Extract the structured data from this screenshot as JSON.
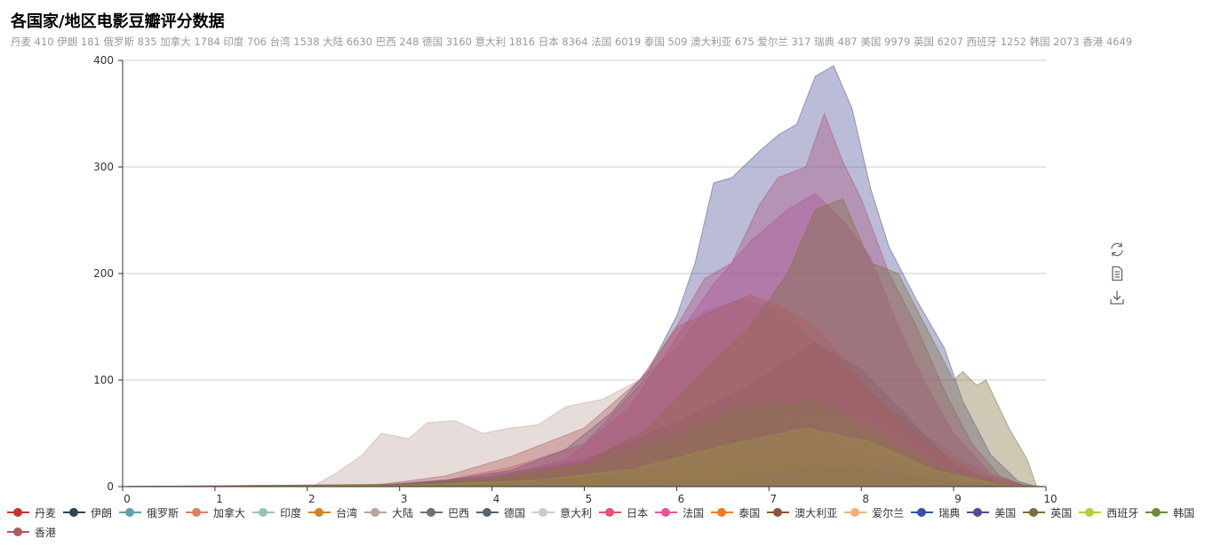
{
  "title": "各国家/地区电影豆瓣评分数据",
  "subtitle": "丹麦 410 伊朗 181 俄罗斯 835 加拿大 1784 印度 706 台湾 1538 大陆 6630 巴西 248 德国 3160 意大利 1816 日本 8364 法国 6019 泰国 509 澳大利亚 675 爱尔兰 317 瑞典 487 美国 9979 英国 6207 西班牙 1252 韩国 2073 香港 4649",
  "toolbox": [
    {
      "name": "restore-icon",
      "label": "还原"
    },
    {
      "name": "data-view-icon",
      "label": "数据视图"
    },
    {
      "name": "save-image-icon",
      "label": "保存为图片"
    }
  ],
  "chart_data": {
    "type": "area",
    "title": "各国家/地区电影豆瓣评分数据",
    "xlabel": "",
    "ylabel": "",
    "xlim": [
      0,
      10
    ],
    "ylim": [
      0,
      400
    ],
    "xticks": [
      "0",
      "1",
      "2",
      "3",
      "4",
      "5",
      "6",
      "7",
      "8",
      "9",
      "10"
    ],
    "yticks": [
      "0",
      "100",
      "200",
      "300",
      "400"
    ],
    "grid": "horizontal",
    "legend_position": "bottom",
    "series": [
      {
        "name": "丹麦",
        "total": 410,
        "color": "#c23531",
        "curve": [
          [
            0,
            0
          ],
          [
            4.5,
            1
          ],
          [
            5.5,
            4
          ],
          [
            6.5,
            10
          ],
          [
            7.5,
            14
          ],
          [
            8,
            12
          ],
          [
            8.8,
            4
          ],
          [
            9.5,
            0
          ],
          [
            10,
            0
          ]
        ]
      },
      {
        "name": "伊朗",
        "total": 181,
        "color": "#2f4554",
        "curve": [
          [
            0,
            0
          ],
          [
            5,
            1
          ],
          [
            6.5,
            4
          ],
          [
            7.5,
            7
          ],
          [
            8.5,
            4
          ],
          [
            9.3,
            0
          ],
          [
            10,
            0
          ]
        ]
      },
      {
        "name": "俄罗斯",
        "total": 835,
        "color": "#61a0a8",
        "curve": [
          [
            0,
            0
          ],
          [
            3,
            1
          ],
          [
            5,
            6
          ],
          [
            6.5,
            16
          ],
          [
            7.5,
            26
          ],
          [
            8.3,
            20
          ],
          [
            9,
            6
          ],
          [
            9.6,
            0
          ],
          [
            10,
            0
          ]
        ]
      },
      {
        "name": "加拿大",
        "total": 1784,
        "color": "#d48265",
        "curve": [
          [
            0,
            0
          ],
          [
            2.8,
            2
          ],
          [
            4,
            8
          ],
          [
            5,
            22
          ],
          [
            6,
            45
          ],
          [
            6.7,
            60
          ],
          [
            7.2,
            55
          ],
          [
            8,
            30
          ],
          [
            9,
            6
          ],
          [
            9.6,
            0
          ],
          [
            10,
            0
          ]
        ]
      },
      {
        "name": "印度",
        "total": 706,
        "color": "#91c7ae",
        "curve": [
          [
            0,
            0
          ],
          [
            2.5,
            1
          ],
          [
            3.5,
            6
          ],
          [
            5,
            12
          ],
          [
            6.5,
            20
          ],
          [
            7.5,
            22
          ],
          [
            8.3,
            14
          ],
          [
            9,
            4
          ],
          [
            9.6,
            0
          ],
          [
            10,
            0
          ]
        ]
      },
      {
        "name": "台湾",
        "total": 1538,
        "color": "#c7891f",
        "curve": [
          [
            0,
            0
          ],
          [
            3,
            1
          ],
          [
            4.5,
            8
          ],
          [
            5.5,
            18
          ],
          [
            6.5,
            45
          ],
          [
            7.3,
            62
          ],
          [
            7.8,
            50
          ],
          [
            8.5,
            20
          ],
          [
            9.2,
            3
          ],
          [
            9.7,
            0
          ],
          [
            10,
            0
          ]
        ]
      },
      {
        "name": "大陆",
        "total": 6630,
        "color": "#bda29a",
        "curve": [
          [
            0,
            0
          ],
          [
            2.05,
            0
          ],
          [
            2.3,
            12
          ],
          [
            2.6,
            30
          ],
          [
            2.8,
            50
          ],
          [
            3.1,
            45
          ],
          [
            3.3,
            60
          ],
          [
            3.6,
            62
          ],
          [
            3.9,
            50
          ],
          [
            4.2,
            55
          ],
          [
            4.5,
            58
          ],
          [
            4.8,
            75
          ],
          [
            5.2,
            82
          ],
          [
            5.6,
            100
          ],
          [
            6,
            130
          ],
          [
            6.3,
            165
          ],
          [
            6.7,
            175
          ],
          [
            7,
            170
          ],
          [
            7.3,
            150
          ],
          [
            7.7,
            120
          ],
          [
            8,
            95
          ],
          [
            8.5,
            60
          ],
          [
            9,
            30
          ],
          [
            9.4,
            10
          ],
          [
            9.8,
            0
          ],
          [
            10,
            0
          ]
        ]
      },
      {
        "name": "巴西",
        "total": 248,
        "color": "#6e7074",
        "curve": [
          [
            0,
            0
          ],
          [
            5,
            1
          ],
          [
            6.5,
            6
          ],
          [
            7.5,
            9
          ],
          [
            8.3,
            6
          ],
          [
            9.2,
            0
          ],
          [
            10,
            0
          ]
        ]
      },
      {
        "name": "德国",
        "total": 3160,
        "color": "#546570",
        "curve": [
          [
            0,
            0
          ],
          [
            3,
            2
          ],
          [
            4,
            10
          ],
          [
            5,
            25
          ],
          [
            6,
            60
          ],
          [
            6.8,
            95
          ],
          [
            7.5,
            135
          ],
          [
            8,
            110
          ],
          [
            8.5,
            65
          ],
          [
            9,
            20
          ],
          [
            9.5,
            3
          ],
          [
            10,
            0
          ]
        ]
      },
      {
        "name": "意大利",
        "total": 1816,
        "color": "#c4ccd3",
        "curve": [
          [
            0,
            0
          ],
          [
            3,
            1
          ],
          [
            4.5,
            6
          ],
          [
            5.5,
            18
          ],
          [
            6.5,
            45
          ],
          [
            7.3,
            68
          ],
          [
            8,
            70
          ],
          [
            8.5,
            45
          ],
          [
            9,
            12
          ],
          [
            9.6,
            0
          ],
          [
            10,
            0
          ]
        ]
      },
      {
        "name": "日本",
        "total": 8364,
        "color": "#e8526e",
        "curve": [
          [
            0,
            0
          ],
          [
            2.8,
            1
          ],
          [
            3.5,
            6
          ],
          [
            4.2,
            18
          ],
          [
            5,
            40
          ],
          [
            5.6,
            95
          ],
          [
            6,
            150
          ],
          [
            6.3,
            195
          ],
          [
            6.6,
            210
          ],
          [
            6.9,
            265
          ],
          [
            7.1,
            290
          ],
          [
            7.4,
            300
          ],
          [
            7.6,
            350
          ],
          [
            7.8,
            305
          ],
          [
            8,
            270
          ],
          [
            8.3,
            200
          ],
          [
            8.6,
            150
          ],
          [
            8.9,
            90
          ],
          [
            9.2,
            40
          ],
          [
            9.5,
            10
          ],
          [
            9.8,
            0
          ],
          [
            10,
            0
          ]
        ]
      },
      {
        "name": "法国",
        "total": 6019,
        "color": "#e85597",
        "curve": [
          [
            0,
            0
          ],
          [
            3,
            1
          ],
          [
            4,
            8
          ],
          [
            4.8,
            25
          ],
          [
            5.5,
            75
          ],
          [
            6,
            140
          ],
          [
            6.4,
            190
          ],
          [
            6.8,
            230
          ],
          [
            7.2,
            260
          ],
          [
            7.5,
            275
          ],
          [
            7.8,
            250
          ],
          [
            8.1,
            215
          ],
          [
            8.4,
            150
          ],
          [
            8.7,
            95
          ],
          [
            9,
            50
          ],
          [
            9.4,
            12
          ],
          [
            9.8,
            0
          ],
          [
            10,
            0
          ]
        ]
      },
      {
        "name": "泰国",
        "total": 509,
        "color": "#ef7b27",
        "curve": [
          [
            0,
            0
          ],
          [
            4,
            1
          ],
          [
            5,
            6
          ],
          [
            6,
            14
          ],
          [
            6.8,
            22
          ],
          [
            7.5,
            18
          ],
          [
            8.3,
            8
          ],
          [
            9,
            1
          ],
          [
            9.5,
            0
          ],
          [
            10,
            0
          ]
        ]
      },
      {
        "name": "澳大利亚",
        "total": 675,
        "color": "#8e5433",
        "curve": [
          [
            0,
            0
          ],
          [
            3.5,
            1
          ],
          [
            5,
            8
          ],
          [
            6,
            18
          ],
          [
            7,
            28
          ],
          [
            7.6,
            26
          ],
          [
            8.3,
            14
          ],
          [
            9,
            3
          ],
          [
            9.5,
            0
          ],
          [
            10,
            0
          ]
        ]
      },
      {
        "name": "爱尔兰",
        "total": 317,
        "color": "#f2b07a",
        "curve": [
          [
            0,
            0
          ],
          [
            5,
            1
          ],
          [
            6.5,
            8
          ],
          [
            7.5,
            13
          ],
          [
            8.3,
            9
          ],
          [
            9,
            2
          ],
          [
            9.5,
            0
          ],
          [
            10,
            0
          ]
        ]
      },
      {
        "name": "瑞典",
        "total": 487,
        "color": "#2f55a4",
        "curve": [
          [
            0,
            0
          ],
          [
            5,
            1
          ],
          [
            6.5,
            8
          ],
          [
            7.5,
            18
          ],
          [
            8.2,
            14
          ],
          [
            9,
            3
          ],
          [
            9.6,
            0
          ],
          [
            10,
            0
          ]
        ]
      },
      {
        "name": "美国",
        "total": 9979,
        "color": "#4d4e96",
        "curve": [
          [
            0,
            0
          ],
          [
            2.8,
            1
          ],
          [
            3.5,
            6
          ],
          [
            4.2,
            15
          ],
          [
            4.8,
            35
          ],
          [
            5.3,
            70
          ],
          [
            5.7,
            110
          ],
          [
            6,
            160
          ],
          [
            6.2,
            210
          ],
          [
            6.4,
            285
          ],
          [
            6.6,
            290
          ],
          [
            6.9,
            315
          ],
          [
            7.1,
            330
          ],
          [
            7.3,
            340
          ],
          [
            7.5,
            385
          ],
          [
            7.7,
            395
          ],
          [
            7.9,
            355
          ],
          [
            8.1,
            280
          ],
          [
            8.3,
            225
          ],
          [
            8.6,
            175
          ],
          [
            8.9,
            130
          ],
          [
            9.1,
            80
          ],
          [
            9.4,
            30
          ],
          [
            9.7,
            5
          ],
          [
            9.9,
            0
          ],
          [
            10,
            0
          ]
        ]
      },
      {
        "name": "英国",
        "total": 6207,
        "color": "#7d6f3a",
        "curve": [
          [
            0,
            0
          ],
          [
            3,
            1
          ],
          [
            4,
            8
          ],
          [
            5,
            22
          ],
          [
            5.7,
            55
          ],
          [
            6.2,
            100
          ],
          [
            6.8,
            150
          ],
          [
            7.2,
            200
          ],
          [
            7.5,
            260
          ],
          [
            7.8,
            270
          ],
          [
            8.1,
            210
          ],
          [
            8.4,
            200
          ],
          [
            8.7,
            150
          ],
          [
            9,
            100
          ],
          [
            9.1,
            108
          ],
          [
            9.25,
            95
          ],
          [
            9.35,
            100
          ],
          [
            9.6,
            55
          ],
          [
            9.8,
            25
          ],
          [
            9.9,
            0
          ],
          [
            10,
            0
          ]
        ]
      },
      {
        "name": "西班牙",
        "total": 1252,
        "color": "#b5cf3f",
        "curve": [
          [
            0,
            0
          ],
          [
            3,
            1
          ],
          [
            4.5,
            6
          ],
          [
            5.5,
            16
          ],
          [
            6.5,
            38
          ],
          [
            7.4,
            55
          ],
          [
            8.1,
            42
          ],
          [
            8.8,
            15
          ],
          [
            9.5,
            2
          ],
          [
            10,
            0
          ]
        ]
      },
      {
        "name": "韩国",
        "total": 2073,
        "color": "#6f8a3e",
        "curve": [
          [
            0,
            0
          ],
          [
            3,
            2
          ],
          [
            4,
            8
          ],
          [
            5,
            20
          ],
          [
            6,
            48
          ],
          [
            6.7,
            75
          ],
          [
            7.5,
            80
          ],
          [
            8.1,
            55
          ],
          [
            8.8,
            20
          ],
          [
            9.5,
            2
          ],
          [
            10,
            0
          ]
        ]
      },
      {
        "name": "香港",
        "total": 4649,
        "color": "#ad5c5c",
        "curve": [
          [
            0,
            0
          ],
          [
            2.8,
            2
          ],
          [
            3.5,
            10
          ],
          [
            4.2,
            28
          ],
          [
            5,
            55
          ],
          [
            5.6,
            100
          ],
          [
            6,
            150
          ],
          [
            6.4,
            165
          ],
          [
            6.8,
            180
          ],
          [
            7.1,
            170
          ],
          [
            7.5,
            150
          ],
          [
            7.9,
            110
          ],
          [
            8.3,
            70
          ],
          [
            8.8,
            35
          ],
          [
            9.3,
            10
          ],
          [
            9.8,
            0
          ],
          [
            10,
            0
          ]
        ]
      }
    ]
  }
}
